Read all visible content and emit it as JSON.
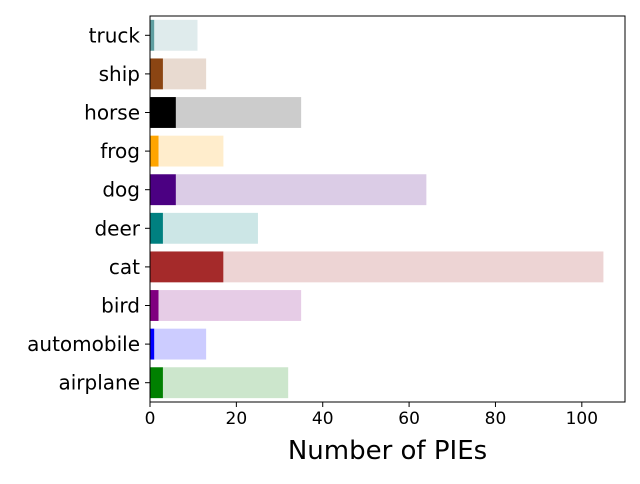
{
  "chart_data": {
    "type": "bar",
    "orientation": "horizontal",
    "stacked": true,
    "categories": [
      "airplane",
      "automobile",
      "bird",
      "cat",
      "deer",
      "dog",
      "frog",
      "horse",
      "ship",
      "truck"
    ],
    "series": [
      {
        "values": [
          3,
          1,
          2,
          17,
          3,
          6,
          2,
          6,
          3,
          1
        ],
        "colors": [
          "#008000",
          "#0000ff",
          "#800080",
          "#a52a2a",
          "#008080",
          "#4b0082",
          "#ffa500",
          "#000000",
          "#8b4513",
          "#5f9ea0"
        ]
      },
      {
        "values": [
          29,
          12,
          33,
          88,
          22,
          58,
          15,
          29,
          10,
          10
        ],
        "colors": [
          "#cce6cc",
          "#ccccff",
          "#e6cce6",
          "#edd4d4",
          "#cce6e6",
          "#dbcce6",
          "#ffedcc",
          "#cccccc",
          "#e8dad0",
          "#dfebec"
        ]
      }
    ],
    "totals": [
      32,
      13,
      35,
      105,
      25,
      64,
      17,
      35,
      13,
      11
    ],
    "xlabel": "Number of PIEs",
    "ylabel": "",
    "title": "",
    "xlim": [
      0,
      110
    ],
    "xticks": [
      0,
      20,
      40,
      60,
      80,
      100
    ],
    "grid": false,
    "legend": "none"
  }
}
